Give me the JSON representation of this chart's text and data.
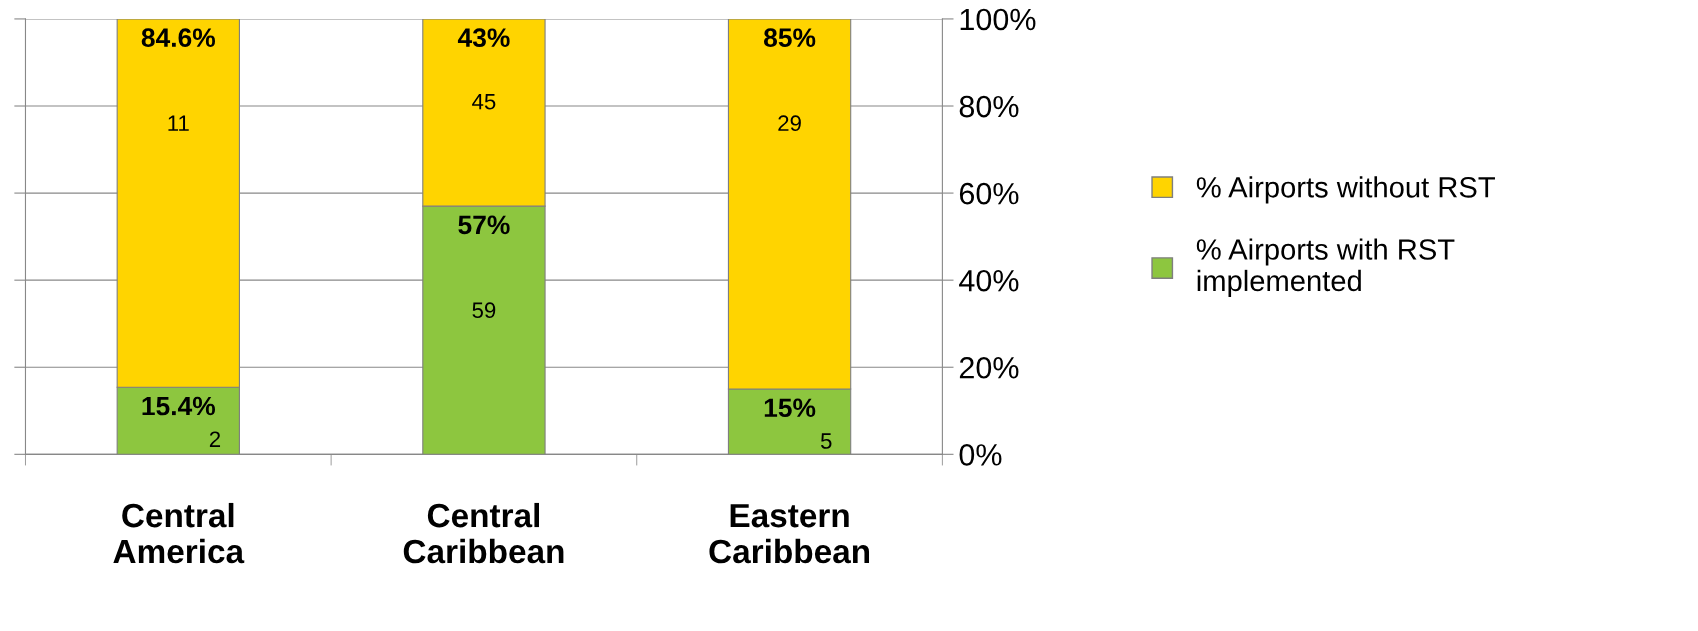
{
  "chart_data": {
    "type": "bar",
    "stacked": true,
    "categories": [
      "Central\nAmerica",
      "Central\nCaribbean",
      "Eastern\nCaribbean"
    ],
    "series": [
      {
        "name": "% Airports with RST\nimplemented",
        "color": "#8dc63f",
        "values": [
          15.4,
          57,
          15
        ],
        "value_labels": [
          "15.4%\n2",
          "57%\n59",
          "15%\n5"
        ]
      },
      {
        "name": "% Airports without RST",
        "color": "#ffd400",
        "values": [
          84.6,
          43,
          85
        ],
        "value_labels": [
          "84.6%\n11",
          "43%\n45",
          "85%\n29"
        ]
      }
    ],
    "ylim": [
      0,
      100
    ],
    "yticks": [
      {
        "value": 0,
        "label": "0%"
      },
      {
        "value": 20,
        "label": "20%"
      },
      {
        "value": 40,
        "label": "40%"
      },
      {
        "value": 60,
        "label": "60%"
      },
      {
        "value": 80,
        "label": "80%"
      },
      {
        "value": 100,
        "label": "100%"
      }
    ],
    "grid": "y",
    "legend": "right"
  }
}
